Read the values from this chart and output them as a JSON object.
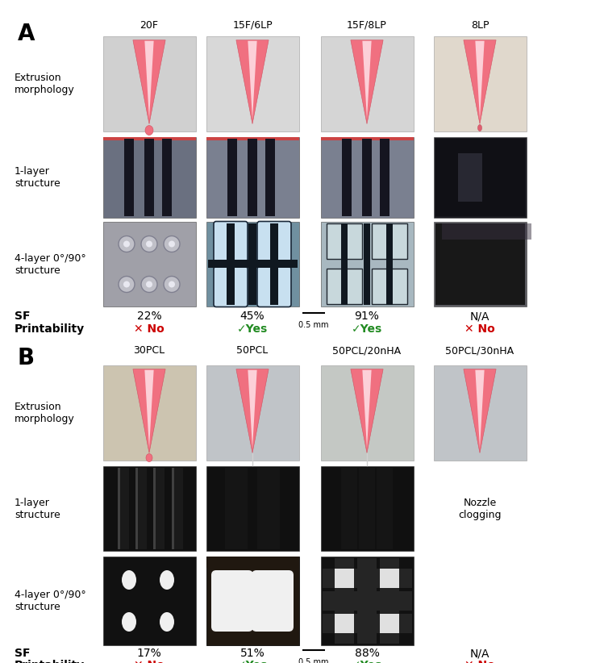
{
  "panel_A": {
    "label": "A",
    "columns": [
      "20F",
      "15F/6LP",
      "15F/8LP",
      "8LP"
    ],
    "sf_values": [
      "22%",
      "45%",
      "91%",
      "N/A"
    ],
    "printability": [
      "✕ No",
      "✓Yes",
      "✓Yes",
      "✕ No"
    ],
    "printability_colors": [
      "#cc0000",
      "#228B22",
      "#228B22",
      "#cc0000"
    ],
    "nozzle_bgs": [
      "#d0d0d0",
      "#d8d8d8",
      "#d5d5d5",
      "#e0d8cc"
    ],
    "layer1_bgs": [
      "#6a7080",
      "#7a8090",
      "#7a8090",
      "#1a1a20"
    ],
    "layer4_bgs": [
      "#a0a0a8",
      "#7090a0",
      "#a8b8c0",
      "#5a5a60"
    ]
  },
  "panel_B": {
    "label": "B",
    "columns": [
      "30PCL",
      "50PCL",
      "50PCL/20nHA",
      "50PCL/30nHA"
    ],
    "sf_values": [
      "17%",
      "51%",
      "88%",
      "N/A"
    ],
    "printability": [
      "✕ No",
      "✓Yes",
      "✓Yes",
      "✕ No"
    ],
    "printability_colors": [
      "#cc0000",
      "#228B22",
      "#228B22",
      "#cc0000"
    ],
    "nozzle_bgs": [
      "#ccc4b0",
      "#c0c4c8",
      "#c4c8c4",
      "#c0c4c8"
    ],
    "nozzle_clogging_text": "Nozzle\nclogging"
  },
  "bg_color": "#ffffff",
  "fig_width": 7.49,
  "fig_height": 8.22
}
